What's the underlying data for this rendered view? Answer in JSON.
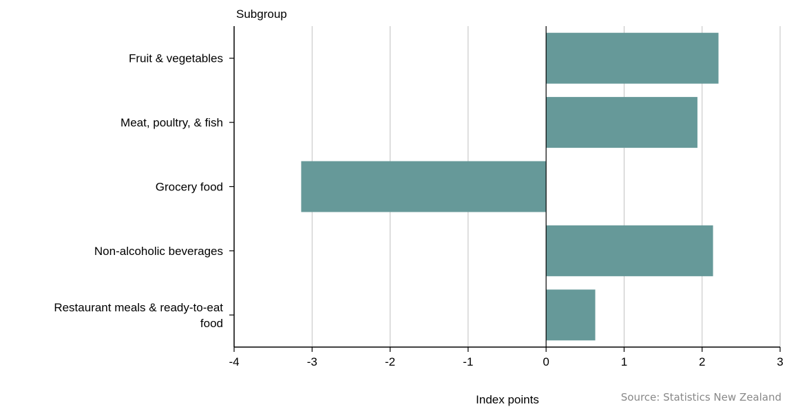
{
  "chart_data": {
    "type": "bar",
    "orientation": "horizontal",
    "y_axis_title": "Subgroup",
    "xlabel": "Index points",
    "categories": [
      "Fruit & vegetables",
      "Meat, poultry, & fish",
      "Grocery food",
      "Non-alcoholic beverages",
      "Restaurant meals & ready-to-eat food"
    ],
    "category_lines": [
      [
        "Fruit & vegetables"
      ],
      [
        "Meat, poultry, & fish"
      ],
      [
        "Grocery food"
      ],
      [
        "Non-alcoholic beverages"
      ],
      [
        "Restaurant meals & ready-to-eat",
        "food"
      ]
    ],
    "values": [
      2.21,
      1.94,
      -3.14,
      2.14,
      0.63
    ],
    "xlim": [
      -4,
      3
    ],
    "xticks": [
      -4,
      -3,
      -2,
      -1,
      0,
      1,
      2,
      3
    ],
    "xtick_labels": [
      "-4",
      "-3",
      "-2",
      "-1",
      "0",
      "1",
      "2",
      "3"
    ],
    "grid": "vertical",
    "bar_color": "#669999",
    "grid_color": "#c0c0c0",
    "axis_color": "#000000"
  },
  "source": "Source: Statistics New Zealand"
}
